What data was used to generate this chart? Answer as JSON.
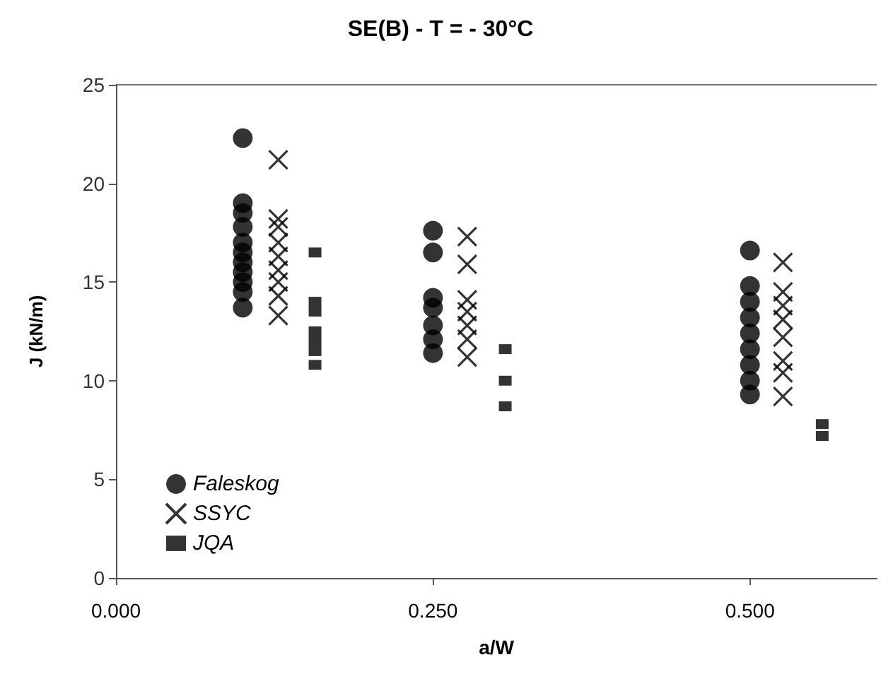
{
  "chart_data": {
    "type": "scatter",
    "title": "SE(B) - T = - 30°C",
    "xlabel": "a/W",
    "ylabel": "J (kN/m)",
    "xlim": [
      0,
      0.6
    ],
    "xticks": [
      {
        "value": 0,
        "label": "0.000"
      },
      {
        "value": 0.25,
        "label": "0.250"
      },
      {
        "value": 0.5,
        "label": "0.500"
      }
    ],
    "ylim": [
      0,
      25
    ],
    "yticks": [
      0,
      5,
      10,
      15,
      20,
      25
    ],
    "grid": false,
    "legend": "bottom left",
    "series": [
      {
        "name": "Faleskog",
        "color": "#000000",
        "marker": "circle",
        "x": [
          0.1,
          0.1,
          0.1,
          0.1,
          0.1,
          0.1,
          0.1,
          0.1,
          0.1,
          0.1,
          0.1,
          0.25,
          0.25,
          0.25,
          0.25,
          0.25,
          0.25,
          0.25,
          0.5,
          0.5,
          0.5,
          0.5,
          0.5,
          0.5,
          0.5,
          0.5,
          0.5
        ],
        "values": [
          22.3,
          19.0,
          18.5,
          17.8,
          17.0,
          16.5,
          16.0,
          15.5,
          15.0,
          14.5,
          13.7,
          17.6,
          16.5,
          14.2,
          13.7,
          12.8,
          12.1,
          11.4,
          16.6,
          14.8,
          14.0,
          13.2,
          12.4,
          11.6,
          10.8,
          10.0,
          9.3
        ]
      },
      {
        "name": "SSYC",
        "color": "#000000",
        "marker": "cross",
        "x": [
          0.128,
          0.128,
          0.128,
          0.128,
          0.128,
          0.128,
          0.128,
          0.128,
          0.128,
          0.277,
          0.277,
          0.277,
          0.277,
          0.277,
          0.277,
          0.277,
          0.526,
          0.526,
          0.526,
          0.526,
          0.526,
          0.526,
          0.526,
          0.526
        ],
        "values": [
          21.2,
          18.2,
          17.8,
          17.0,
          16.3,
          15.6,
          15.0,
          14.3,
          13.3,
          17.3,
          15.9,
          14.1,
          13.5,
          12.8,
          12.1,
          11.2,
          16.0,
          14.5,
          13.8,
          13.1,
          12.2,
          11.0,
          10.4,
          9.2
        ]
      },
      {
        "name": "JQA",
        "color": "#000000",
        "marker": "square",
        "x": [
          0.157,
          0.157,
          0.157,
          0.157,
          0.157,
          0.157,
          0.157,
          0.307,
          0.307,
          0.307,
          0.557,
          0.557
        ],
        "values": [
          16.5,
          14.0,
          13.5,
          12.5,
          12.0,
          11.5,
          10.8,
          11.6,
          10.0,
          8.7,
          7.8,
          7.2
        ]
      }
    ]
  }
}
